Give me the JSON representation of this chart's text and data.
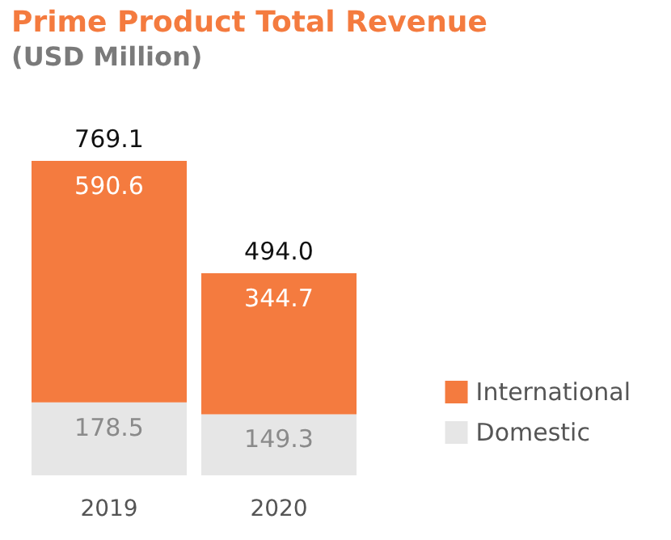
{
  "chart_data": {
    "type": "bar",
    "title": "Prime Product Total Revenue",
    "subtitle": "(USD Million)",
    "categories": [
      "2019",
      "2020"
    ],
    "stacked": true,
    "data_labels": true,
    "legend": "right",
    "series": [
      {
        "name": "Domestic",
        "color": "#e6e6e6",
        "values": [
          178.5,
          149.3
        ]
      },
      {
        "name": "International",
        "color": "#f47b3f",
        "values": [
          590.6,
          344.7
        ]
      }
    ],
    "totals": [
      "769.1",
      "494.0"
    ]
  }
}
